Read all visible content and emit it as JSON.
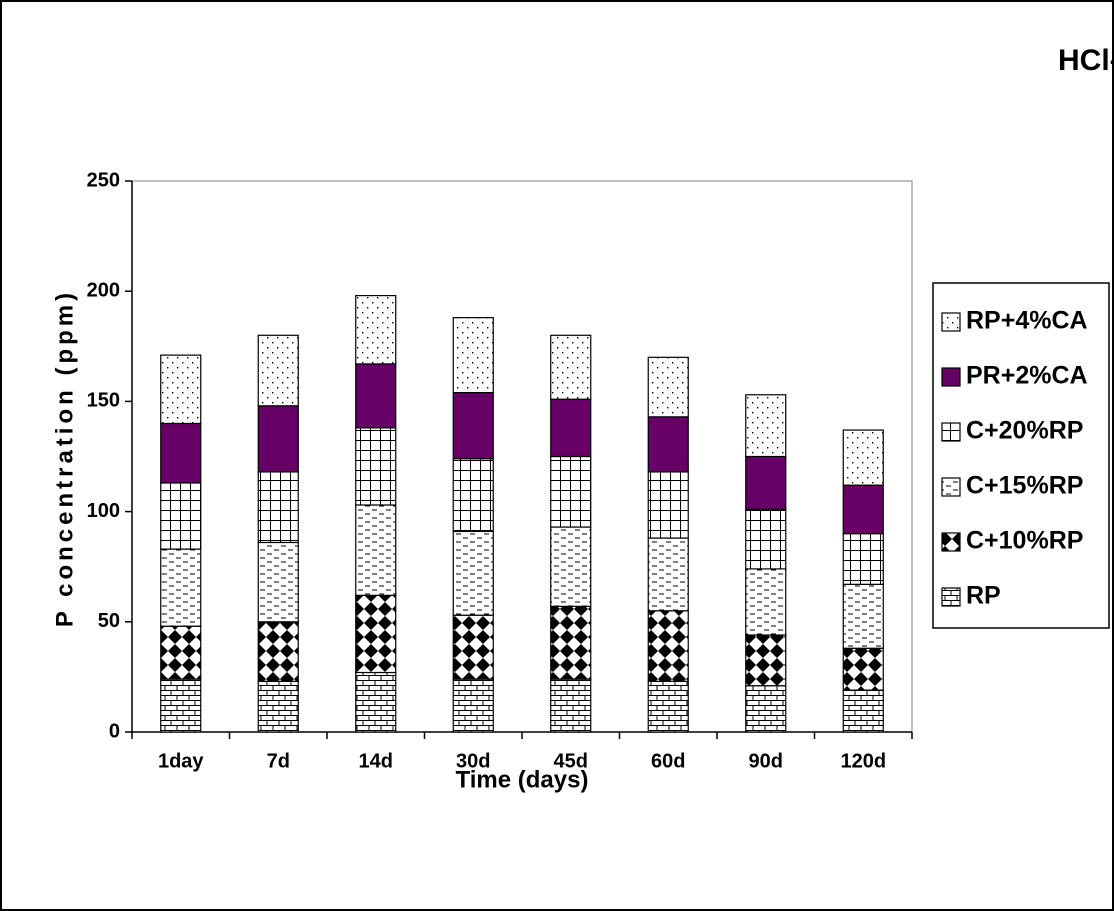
{
  "chart_data": {
    "type": "bar",
    "stacked": true,
    "title": "HCl-P",
    "xlabel": "Time (days)",
    "ylabel": "P concentration (ppm)",
    "categories": [
      "1day",
      "7d",
      "14d",
      "30d",
      "45d",
      "60d",
      "90d",
      "120d"
    ],
    "ylim": [
      0,
      250
    ],
    "yticks": [
      0,
      50,
      100,
      150,
      200,
      250
    ],
    "grid": false,
    "legend_position": "right",
    "series": [
      {
        "name": "RP",
        "pattern": "bricks",
        "values": [
          24,
          23,
          27,
          24,
          24,
          23,
          21,
          19
        ]
      },
      {
        "name": "C+10%RP",
        "pattern": "diamonds",
        "values": [
          24,
          27,
          35,
          29,
          33,
          32,
          23,
          19
        ]
      },
      {
        "name": "C+15%RP",
        "pattern": "dashes",
        "values": [
          35,
          36,
          41,
          38,
          36,
          33,
          30,
          29
        ]
      },
      {
        "name": "C+20%RP",
        "pattern": "grid",
        "values": [
          30,
          32,
          35,
          33,
          32,
          30,
          27,
          23
        ]
      },
      {
        "name": "PR+2%CA",
        "pattern": "solid",
        "color": "#660066",
        "values": [
          27,
          30,
          29,
          30,
          26,
          25,
          24,
          22
        ]
      },
      {
        "name": "RP+4%CA",
        "pattern": "dots",
        "values": [
          31,
          32,
          31,
          34,
          29,
          27,
          28,
          25
        ]
      }
    ]
  }
}
